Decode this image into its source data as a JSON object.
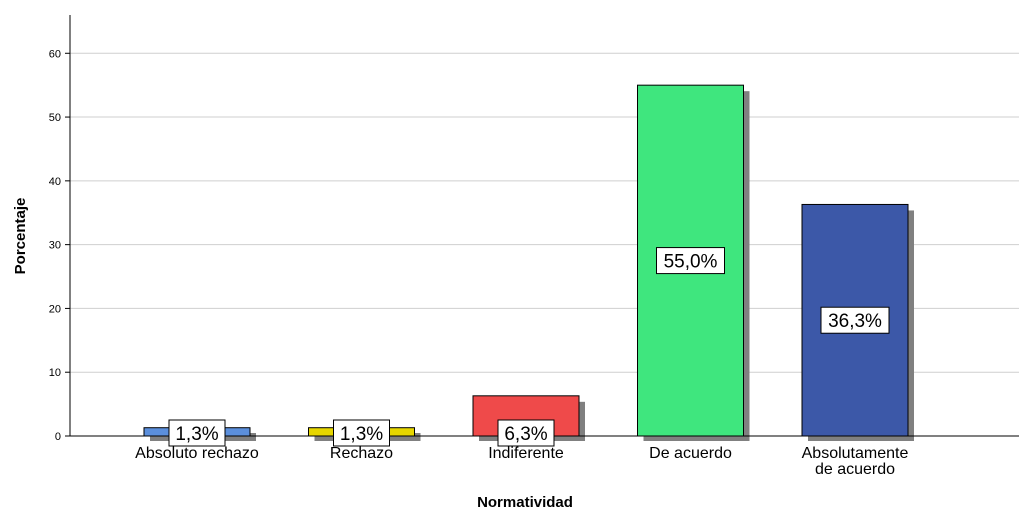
{
  "chart_data": {
    "type": "bar",
    "xlabel": "Normatividad",
    "ylabel": "Porcentaje",
    "ylim": [
      0,
      66
    ],
    "yticks": [
      0,
      10,
      20,
      30,
      40,
      50,
      60
    ],
    "grid": true,
    "legend": "none",
    "categories": [
      [
        "Absoluto rechazo"
      ],
      [
        "Rechazo"
      ],
      [
        "Indiferente"
      ],
      [
        "De acuerdo"
      ],
      [
        "Absolutamente",
        "de acuerdo"
      ]
    ],
    "values": [
      1.3,
      1.3,
      6.3,
      55.0,
      36.3
    ],
    "data_labels": [
      "1,3%",
      "1,3%",
      "6,3%",
      "55,0%",
      "36,3%"
    ],
    "colors": [
      "#5b8fdc",
      "#e6d600",
      "#ef4a4a",
      "#3fe67e",
      "#3c58a8"
    ],
    "shadow_color": "#808080",
    "grid_color": "#cfcfcf"
  }
}
